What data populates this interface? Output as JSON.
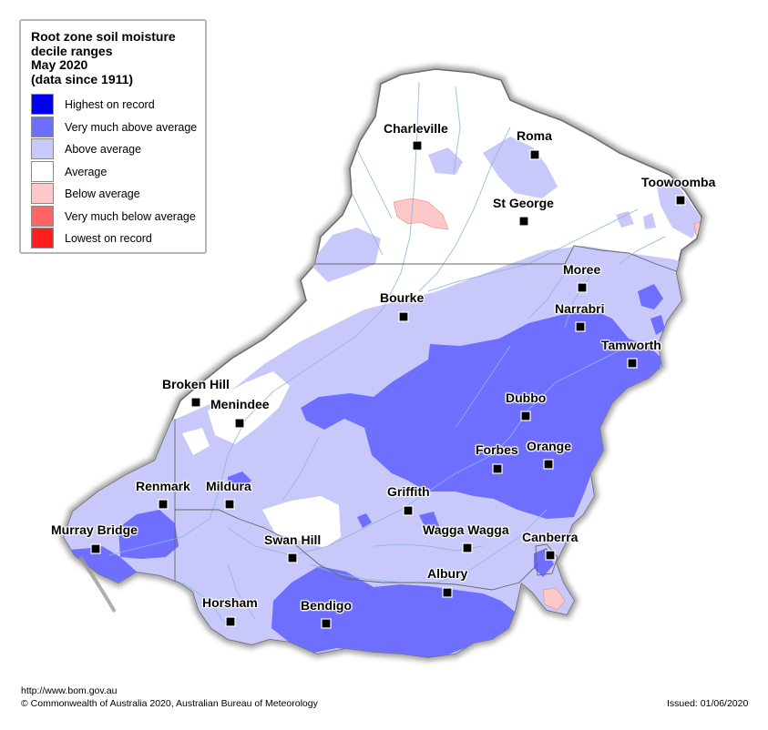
{
  "legend": {
    "title_lines": [
      "Root zone soil moisture",
      "decile ranges",
      "May 2020",
      "(data since 1911)"
    ],
    "items": [
      {
        "label": "Highest on record",
        "color": "#0000ee"
      },
      {
        "label": "Very much above average",
        "color": "#6e6eff"
      },
      {
        "label": "Above average",
        "color": "#c8c8fa"
      },
      {
        "label": "Average",
        "color": "#ffffff"
      },
      {
        "label": "Below average",
        "color": "#ffc8c8"
      },
      {
        "label": "Very much below average",
        "color": "#ff6464"
      },
      {
        "label": "Lowest on record",
        "color": "#ff1e1e"
      }
    ]
  },
  "towns": [
    {
      "name": "Charleville"
    },
    {
      "name": "Roma"
    },
    {
      "name": "Toowoomba"
    },
    {
      "name": "St George"
    },
    {
      "name": "Moree"
    },
    {
      "name": "Bourke"
    },
    {
      "name": "Narrabri"
    },
    {
      "name": "Tamworth"
    },
    {
      "name": "Broken Hill"
    },
    {
      "name": "Menindee"
    },
    {
      "name": "Dubbo"
    },
    {
      "name": "Forbes"
    },
    {
      "name": "Orange"
    },
    {
      "name": "Renmark"
    },
    {
      "name": "Mildura"
    },
    {
      "name": "Griffith"
    },
    {
      "name": "Murray Bridge"
    },
    {
      "name": "Swan Hill"
    },
    {
      "name": "Wagga Wagga"
    },
    {
      "name": "Canberra"
    },
    {
      "name": "Albury"
    },
    {
      "name": "Horsham"
    },
    {
      "name": "Bendigo"
    }
  ],
  "footer": {
    "url": "http://www.bom.gov.au",
    "copyright": "© Commonwealth of Australia 2020, Australian Bureau of Meteorology",
    "issued": "Issued: 01/06/2020"
  }
}
